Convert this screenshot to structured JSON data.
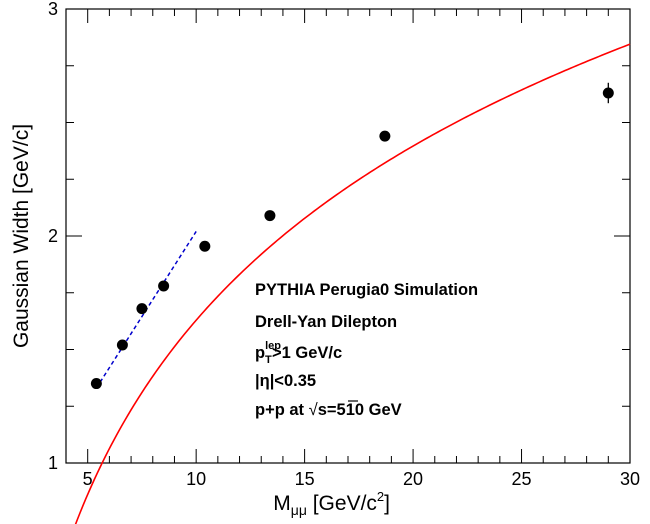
{
  "chart_data": {
    "type": "scatter",
    "title": "",
    "xlabel": {
      "main": "M",
      "sub": "μμ",
      "unit_pre": " [GeV/c",
      "unit_sup": "2",
      "unit_post": "]"
    },
    "ylabel": "Gaussian Width [GeV/c]",
    "xlim": [
      4,
      30
    ],
    "ylim": [
      1,
      3
    ],
    "x_ticks": [
      5,
      10,
      15,
      20,
      25,
      30
    ],
    "x_tick_labels": [
      "5",
      "10",
      "15",
      "20",
      "25",
      "30"
    ],
    "y_ticks": [
      1,
      2,
      3
    ],
    "y_tick_labels": [
      "1",
      "2",
      "3"
    ],
    "grid": false,
    "series": [
      {
        "kind": "points-with-errors",
        "color": "#000000",
        "x": [
          5.4,
          6.6,
          7.5,
          8.5,
          10.4,
          13.4,
          18.7,
          29.0
        ],
        "y": [
          1.35,
          1.52,
          1.68,
          1.78,
          1.955,
          2.09,
          2.44,
          2.63
        ],
        "yerr": [
          0.01,
          0.01,
          0.01,
          0.01,
          0.012,
          0.015,
          0.02,
          0.045
        ]
      },
      {
        "kind": "fit-curve",
        "color": "#ff0000",
        "form": "a + b*ln(x)",
        "params": {
          "a": -0.92,
          "b": 1.107
        },
        "x_range": [
          4,
          30
        ]
      },
      {
        "kind": "dashed-line",
        "color": "#0000cc",
        "x": [
          5.4,
          10.0
        ],
        "y": [
          1.33,
          2.02
        ]
      }
    ],
    "annotations": {
      "line1": "PYTHIA Perugia0 Simulation",
      "line2": "Drell-Yan Dilepton",
      "line3": {
        "p": "p",
        "sup": "lep",
        "sub": "T",
        "rest": ">1 GeV/c"
      },
      "line4": "|η|<0.35",
      "line5": {
        "pre": "p+p at ",
        "sqrt": "√",
        "s": "s",
        "post": "=510 GeV"
      }
    }
  }
}
